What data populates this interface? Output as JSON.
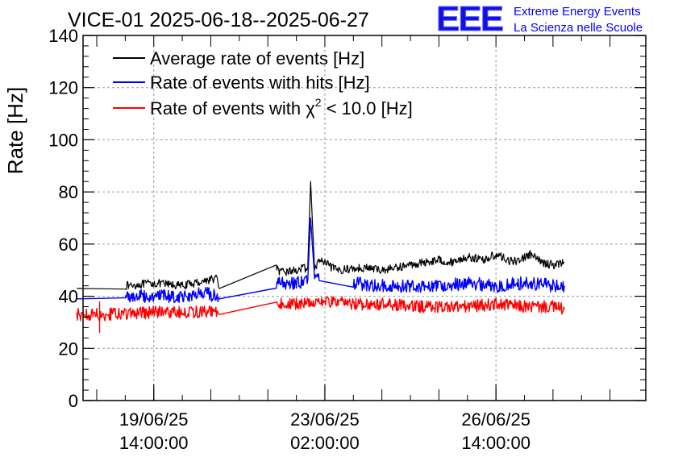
{
  "chart_data": {
    "type": "line",
    "title": "VICE-01 2025-06-18--2025-06-27",
    "ylabel": "Rate [Hz]",
    "xlabel": "",
    "ylim": [
      0,
      140
    ],
    "yticks": [
      0,
      20,
      40,
      60,
      80,
      100,
      120,
      140
    ],
    "xlim_days": [
      0,
      9.5
    ],
    "xticks": [
      {
        "day": 1.0,
        "date": "19/06/25",
        "time": "14:00:00"
      },
      {
        "day": 4.0,
        "date": "23/06/25",
        "time": "02:00:00"
      },
      {
        "day": 7.0,
        "date": "26/06/25",
        "time": "14:00:00"
      }
    ],
    "grid": true,
    "legend": {
      "position": "top-left",
      "entries": [
        {
          "label": "Average rate of events [Hz]",
          "color": "#000000"
        },
        {
          "label": "Rate of events with hits [Hz]",
          "color": "#0000ff"
        },
        {
          "label_prefix": "Rate of events with ",
          "symbol": "χ",
          "superscript": "2",
          "label_suffix": " < 10.0 [Hz]",
          "color": "#ff0000"
        }
      ]
    },
    "series": [
      {
        "name": "Average rate of events [Hz]",
        "color": "#000000",
        "noise": 1.6,
        "x": [
          -0.35,
          0.5,
          1.0,
          1.5,
          1.9,
          2.1,
          2.15,
          3.15,
          3.2,
          3.5,
          3.7,
          3.75,
          3.82,
          3.9,
          4.2,
          4.7,
          5.0,
          5.5,
          6.0,
          6.2,
          6.5,
          6.8,
          7.0,
          7.3,
          7.6,
          7.8,
          8.0,
          8.2
        ],
        "y": [
          43,
          44,
          45,
          44,
          46,
          47,
          43,
          52,
          49,
          50,
          51,
          84,
          50,
          54,
          50,
          51,
          50,
          52,
          54,
          53,
          55,
          54,
          56,
          53,
          56,
          53,
          52,
          53
        ]
      },
      {
        "name": "Rate of events with hits [Hz]",
        "color": "#0000ff",
        "noise": 2.6,
        "x": [
          -0.35,
          0.5,
          1.0,
          1.5,
          1.9,
          2.1,
          2.15,
          3.15,
          3.2,
          3.5,
          3.7,
          3.75,
          3.82,
          3.9,
          4.5,
          5.0,
          5.5,
          6.0,
          6.5,
          7.0,
          7.5,
          8.0,
          8.2
        ],
        "y": [
          39,
          40,
          40,
          40,
          41,
          40,
          39,
          44,
          45,
          45,
          46,
          70,
          47,
          46,
          45,
          44,
          44,
          44,
          45,
          44,
          45,
          44,
          44
        ]
      },
      {
        "name": "Rate of events with χ² < 10.0 [Hz]",
        "color": "#ff0000",
        "noise": 2.4,
        "x": [
          -0.35,
          0.0,
          0.5,
          1.0,
          1.5,
          1.9,
          2.1,
          2.15,
          3.15,
          3.2,
          3.5,
          3.8,
          4.0,
          4.5,
          5.0,
          5.5,
          6.0,
          6.5,
          7.0,
          7.5,
          8.0,
          8.2
        ],
        "y": [
          33,
          33,
          33,
          34,
          34,
          34,
          34,
          33,
          37,
          37,
          37,
          38,
          38,
          37,
          37,
          36,
          36,
          36,
          37,
          36,
          36,
          35
        ],
        "spikes": [
          {
            "x": 0.05,
            "y": 26
          },
          {
            "x": 0.05,
            "y": 38
          }
        ]
      }
    ]
  },
  "logo": {
    "mark": "EEE",
    "line1": "Extreme Energy Events",
    "line2": "La Scienza nelle Scuole"
  },
  "colors": {
    "black": "#000000",
    "blue": "#0000ff",
    "red": "#ff0000",
    "grid": "#9a9a9a"
  }
}
